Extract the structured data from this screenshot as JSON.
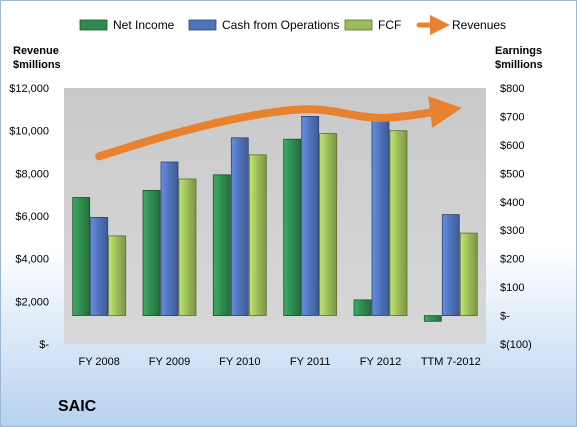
{
  "company_label": "SAIC",
  "chart_data": {
    "type": "bar",
    "categories": [
      "FY 2008",
      "FY 2009",
      "FY 2010",
      "FY 2011",
      "FY 2012",
      "TTM 7-2012"
    ],
    "left_axis": {
      "title_line1": "Revenue",
      "title_line2": "$millions",
      "ylim": [
        0,
        12000
      ],
      "ticks": [
        {
          "value": 0,
          "label": "$-"
        },
        {
          "value": 2000,
          "label": "$2,000"
        },
        {
          "value": 4000,
          "label": "$4,000"
        },
        {
          "value": 6000,
          "label": "$6,000"
        },
        {
          "value": 8000,
          "label": "$8,000"
        },
        {
          "value": 10000,
          "label": "$10,000"
        },
        {
          "value": 12000,
          "label": "$12,000"
        }
      ]
    },
    "right_axis": {
      "title_line1": "Earnings",
      "title_line2": "$millions",
      "ylim": [
        -100,
        800
      ],
      "ticks": [
        {
          "value": -100,
          "label": "$(100)"
        },
        {
          "value": 0,
          "label": "$-"
        },
        {
          "value": 100,
          "label": "$100"
        },
        {
          "value": 200,
          "label": "$200"
        },
        {
          "value": 300,
          "label": "$300"
        },
        {
          "value": 400,
          "label": "$400"
        },
        {
          "value": 500,
          "label": "$500"
        },
        {
          "value": 600,
          "label": "$600"
        },
        {
          "value": 700,
          "label": "$700"
        },
        {
          "value": 800,
          "label": "$800"
        }
      ]
    },
    "series": [
      {
        "name": "Net Income",
        "axis": "right",
        "kind": "bar",
        "color": "#2e8b4e",
        "values": [
          415,
          440,
          495,
          620,
          55,
          -20
        ]
      },
      {
        "name": "Cash from Operations",
        "axis": "right",
        "kind": "bar",
        "color": "#4f72b8",
        "values": [
          345,
          540,
          625,
          700,
          705,
          355
        ]
      },
      {
        "name": "FCF",
        "axis": "right",
        "kind": "bar",
        "color": "#9bbb59",
        "values": [
          280,
          480,
          565,
          640,
          650,
          290
        ]
      },
      {
        "name": "Revenues",
        "axis": "left",
        "kind": "line",
        "color": "#e8822e",
        "values": [
          8800,
          9800,
          10600,
          11000,
          10600,
          11000
        ]
      }
    ],
    "grid": false,
    "legend": "top"
  }
}
